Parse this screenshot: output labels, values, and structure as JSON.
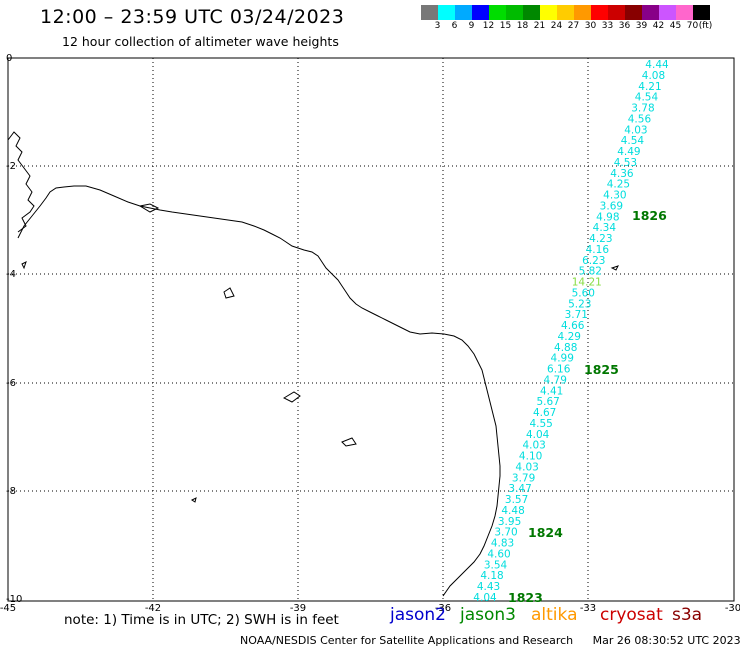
{
  "title": "12:00 – 23:59 UTC 03/24/2023",
  "subtitle": "12 hour collection of altimeter wave heights",
  "colorbar": {
    "unit": "(ft)",
    "colors": [
      "#787878",
      "#00ffff",
      "#00aaff",
      "#0000ff",
      "#00dd00",
      "#00bb00",
      "#008800",
      "#ffff00",
      "#ffcc00",
      "#ff9900",
      "#ff0000",
      "#cc0000",
      "#880000",
      "#880088",
      "#cc55ff",
      "#ff66cc",
      "#000000"
    ],
    "labels": [
      "3",
      "6",
      "9",
      "12",
      "15",
      "18",
      "21",
      "24",
      "27",
      "30",
      "33",
      "36",
      "39",
      "42",
      "45",
      "70"
    ]
  },
  "axes": {
    "x_ticks": [
      "-45",
      "-42",
      "-39",
      "-36",
      "-33",
      "-30"
    ],
    "y_ticks": [
      "0",
      "-2",
      "-4",
      "-6",
      "-8",
      "-10"
    ]
  },
  "track": {
    "wave_heights_color": "#00dddd",
    "values": [
      "4.44",
      "4.08",
      "4.21",
      "4.54",
      "3.78",
      "4.56",
      "4.03",
      "4.54",
      "4.49",
      "4.53",
      "4.36",
      "4.25",
      "4.30",
      "3.69",
      "4.98",
      "4.34",
      "4.23",
      "4.16",
      "6.23",
      "5.82",
      "14.21",
      "5.60",
      "5.23",
      "3.71",
      "4.66",
      "4.29",
      "4.88",
      "4.99",
      "6.16",
      "4.79",
      "4.41",
      "5.67",
      "4.67",
      "4.55",
      "4.04",
      "4.03",
      "4.10",
      "4.03",
      "3.79",
      "3.47",
      "3.57",
      "4.48",
      "3.95",
      "3.70",
      "4.83",
      "4.60",
      "3.54",
      "4.18",
      "4.43",
      "4.04"
    ],
    "times": [
      {
        "label": "1826"
      },
      {
        "label": "1825"
      },
      {
        "label": "1824"
      },
      {
        "label": "1823"
      }
    ],
    "time_color": "#007700"
  },
  "note": "note: 1) Time is in UTC; 2) SWH is in feet",
  "satellites": [
    {
      "name": "jason2",
      "color": "#0000cc"
    },
    {
      "name": "jason3",
      "color": "#008800"
    },
    {
      "name": "altika",
      "color": "#ff9900"
    },
    {
      "name": "cryosat",
      "color": "#cc0000"
    },
    {
      "name": "s3a",
      "color": "#880000"
    }
  ],
  "footer_source": "NOAA/NESDIS Center for Satellite Applications and Research",
  "footer_time": "Mar 26 08:30:52 UTC 2023"
}
